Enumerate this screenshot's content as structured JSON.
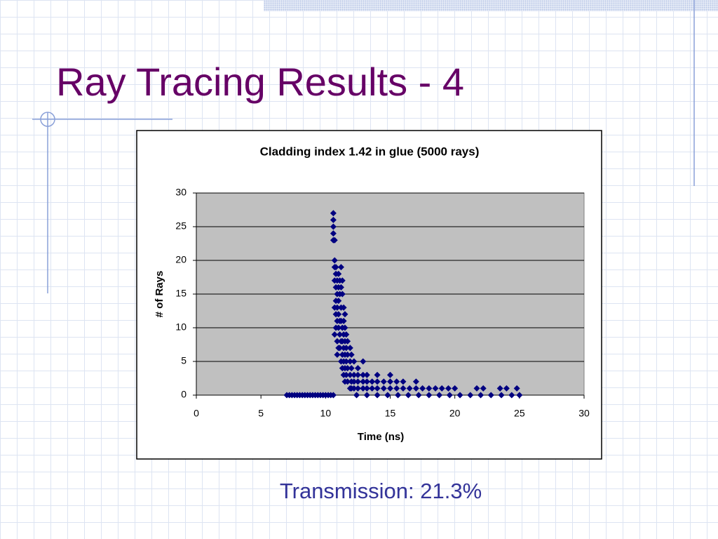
{
  "title": "Ray Tracing Results - 4",
  "caption": "Transmission: 21.3%",
  "chart_data": {
    "type": "scatter",
    "title": "Cladding index 1.42 in glue (5000 rays)",
    "x_label": "Time (ns)",
    "y_label": "# of Rays",
    "color": "#000080",
    "plot_background": "#c0c0c0",
    "grid": true,
    "xlim": [
      0,
      30
    ],
    "ylim": [
      0,
      30
    ],
    "xticks": [
      0,
      5,
      10,
      15,
      20,
      25,
      30
    ],
    "yticks": [
      0,
      5,
      10,
      15,
      20,
      25,
      30
    ],
    "x": [
      7.0,
      7.2,
      7.4,
      7.6,
      7.8,
      8.0,
      8.2,
      8.4,
      8.6,
      8.8,
      9.0,
      9.2,
      9.4,
      9.6,
      9.8,
      10.0,
      10.2,
      10.4,
      10.6,
      12.4,
      13.2,
      14.0,
      14.8,
      15.6,
      16.4,
      17.2,
      18.0,
      18.8,
      19.6,
      20.4,
      21.2,
      22.0,
      22.8,
      23.6,
      24.4,
      25.0,
      10.6,
      10.6,
      10.6,
      10.6,
      10.6,
      10.7,
      10.7,
      10.7,
      10.7,
      10.7,
      10.7,
      10.8,
      10.8,
      10.8,
      10.8,
      10.8,
      10.8,
      10.9,
      10.9,
      10.9,
      10.9,
      10.9,
      10.9,
      11.0,
      11.0,
      11.0,
      11.0,
      11.0,
      11.0,
      11.1,
      11.1,
      11.1,
      11.1,
      11.1,
      11.2,
      11.2,
      11.2,
      11.2,
      11.2,
      11.2,
      11.3,
      11.3,
      11.3,
      11.3,
      11.3,
      11.3,
      11.4,
      11.4,
      11.4,
      11.4,
      11.4,
      11.4,
      11.5,
      11.5,
      11.5,
      11.5,
      11.5,
      11.5,
      11.6,
      11.6,
      11.6,
      11.6,
      11.7,
      11.7,
      11.7,
      11.7,
      11.9,
      11.9,
      11.9,
      11.9,
      12.0,
      12.0,
      12.0,
      12.0,
      12.2,
      12.2,
      12.2,
      12.2,
      12.5,
      12.5,
      12.5,
      12.5,
      12.9,
      12.9,
      12.9,
      12.9,
      13.2,
      13.2,
      13.2,
      13.6,
      13.6,
      14.0,
      14.0,
      14.0,
      14.5,
      14.5,
      15.0,
      15.0,
      15.0,
      15.5,
      15.5,
      16.0,
      16.0,
      16.5,
      17.0,
      17.0,
      17.5,
      18.0,
      18.5,
      19.0,
      19.5,
      20.0,
      21.7,
      22.2,
      23.5,
      24.0,
      24.8
    ],
    "values": [
      0,
      0,
      0,
      0,
      0,
      0,
      0,
      0,
      0,
      0,
      0,
      0,
      0,
      0,
      0,
      0,
      0,
      0,
      0,
      0,
      0,
      0,
      0,
      0,
      0,
      0,
      0,
      0,
      0,
      0,
      0,
      0,
      0,
      0,
      0,
      0,
      27,
      26,
      25,
      24,
      23,
      23,
      20,
      19,
      17,
      13,
      9,
      19,
      18,
      16,
      14,
      12,
      10,
      17,
      15,
      13,
      11,
      8,
      6,
      18,
      16,
      14,
      12,
      10,
      7,
      17,
      15,
      11,
      9,
      7,
      19,
      16,
      13,
      11,
      8,
      5,
      17,
      15,
      10,
      8,
      6,
      4,
      13,
      11,
      9,
      7,
      5,
      3,
      12,
      10,
      8,
      6,
      4,
      2,
      9,
      7,
      5,
      3,
      8,
      6,
      4,
      2,
      7,
      5,
      3,
      1,
      6,
      4,
      2,
      1,
      5,
      3,
      2,
      1,
      4,
      3,
      2,
      1,
      5,
      3,
      2,
      1,
      3,
      2,
      1,
      2,
      1,
      3,
      2,
      1,
      2,
      1,
      3,
      2,
      1,
      2,
      1,
      2,
      1,
      1,
      2,
      1,
      1,
      1,
      1,
      1,
      1,
      1,
      1,
      1,
      1,
      1,
      1
    ]
  }
}
